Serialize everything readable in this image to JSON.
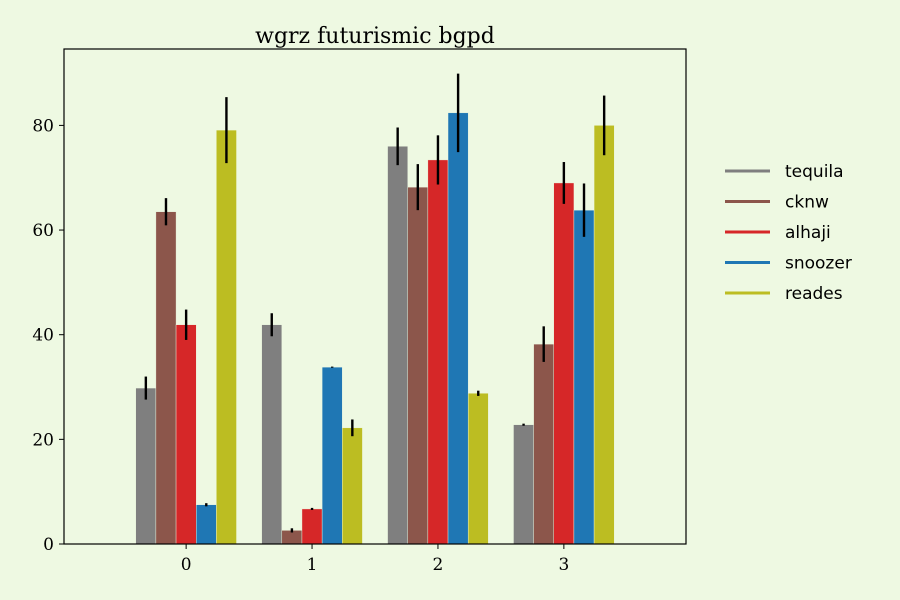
{
  "chart_data": {
    "type": "bar",
    "title": "wgrz futurismic bgpd",
    "xlabel": "",
    "ylabel": "",
    "categories": [
      "0",
      "1",
      "2",
      "3"
    ],
    "ylim": [
      0,
      94.6
    ],
    "yticks": [
      0,
      20,
      40,
      60,
      80
    ],
    "grid": false,
    "legend_position": "right",
    "error_bars": true,
    "series": [
      {
        "name": "tequila",
        "color": "#7f7f7f",
        "values": [
          29.8,
          41.9,
          76.0,
          22.8
        ],
        "errors": [
          2.2,
          2.2,
          3.6,
          0.2
        ]
      },
      {
        "name": "cknw",
        "color": "#8c564b",
        "values": [
          63.5,
          2.6,
          68.2,
          38.2
        ],
        "errors": [
          2.6,
          0.4,
          4.4,
          3.4
        ]
      },
      {
        "name": "alhaji",
        "color": "#d62728",
        "values": [
          41.9,
          6.7,
          73.4,
          69.0
        ],
        "errors": [
          2.9,
          0.2,
          4.7,
          4.0
        ]
      },
      {
        "name": "snoozer",
        "color": "#1f77b4",
        "values": [
          7.5,
          33.8,
          82.4,
          63.8
        ],
        "errors": [
          0.3,
          0.1,
          7.5,
          5.1
        ]
      },
      {
        "name": "reades",
        "color": "#bcbd22",
        "values": [
          79.1,
          22.2,
          28.8,
          80.0
        ],
        "errors": [
          6.3,
          1.6,
          0.5,
          5.7
        ]
      }
    ]
  }
}
